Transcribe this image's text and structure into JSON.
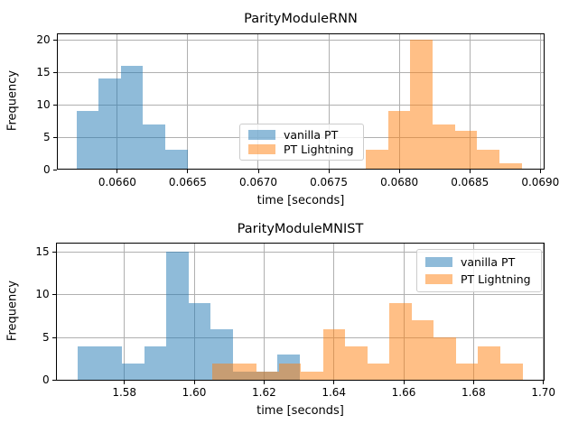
{
  "colors": {
    "vanilla_pt": "#1f77b4",
    "pt_lightning": "#ff7f0e",
    "bar_alpha": 0.5,
    "grid": "#b0b0b0",
    "spine": "#000000",
    "text": "#000000",
    "legend_border": "#cccccc",
    "background": "#ffffff"
  },
  "legend": {
    "items": [
      {
        "label": "vanilla PT",
        "color_key": "vanilla_pt"
      },
      {
        "label": "PT Lightning",
        "color_key": "pt_lightning"
      }
    ]
  },
  "chart_data": [
    {
      "type": "histogram",
      "title": "ParityModuleRNN",
      "xlabel": "time [seconds]",
      "ylabel": "Frequency",
      "xlim": [
        0.06557,
        0.069028
      ],
      "ylim": [
        0,
        21.06
      ],
      "grid": true,
      "legend_position": "center",
      "xticks": [
        {
          "value": 0.066,
          "label": "0.0660"
        },
        {
          "value": 0.0665,
          "label": "0.0665"
        },
        {
          "value": 0.067,
          "label": "0.0670"
        },
        {
          "value": 0.0675,
          "label": "0.0675"
        },
        {
          "value": 0.068,
          "label": "0.0680"
        },
        {
          "value": 0.0685,
          "label": "0.0685"
        },
        {
          "value": 0.069,
          "label": "0.0690"
        }
      ],
      "yticks": [
        {
          "value": 0,
          "label": "0"
        },
        {
          "value": 5,
          "label": "5"
        },
        {
          "value": 10,
          "label": "10"
        },
        {
          "value": 15,
          "label": "15"
        },
        {
          "value": 20,
          "label": "20"
        }
      ],
      "series": [
        {
          "name": "vanilla PT",
          "color_key": "vanilla_pt",
          "bin_start": 0.0657125,
          "bin_width": 0.000157,
          "counts": [
            9,
            14,
            16,
            7,
            3
          ]
        },
        {
          "name": "PT Lightning",
          "color_key": "pt_lightning",
          "bin_start": 0.067762,
          "bin_width": 0.000158,
          "counts": [
            3,
            9,
            20,
            7,
            6,
            3,
            1
          ]
        }
      ]
    },
    {
      "type": "histogram",
      "title": "ParityModuleMNIST",
      "xlabel": "time [seconds]",
      "ylabel": "Frequency",
      "xlim": [
        1.56034,
        1.70034
      ],
      "ylim": [
        0,
        16.05
      ],
      "grid": true,
      "legend_position": "upper right",
      "xticks": [
        {
          "value": 1.58,
          "label": "1.58"
        },
        {
          "value": 1.6,
          "label": "1.60"
        },
        {
          "value": 1.62,
          "label": "1.62"
        },
        {
          "value": 1.64,
          "label": "1.64"
        },
        {
          "value": 1.66,
          "label": "1.66"
        },
        {
          "value": 1.68,
          "label": "1.68"
        },
        {
          "value": 1.7,
          "label": "1.70"
        }
      ],
      "yticks": [
        {
          "value": 0,
          "label": "0"
        },
        {
          "value": 5,
          "label": "5"
        },
        {
          "value": 10,
          "label": "10"
        },
        {
          "value": 15,
          "label": "15"
        }
      ],
      "series": [
        {
          "name": "vanilla PT",
          "color_key": "vanilla_pt",
          "bin_start": 1.56664,
          "bin_width": 0.006352,
          "counts": [
            4,
            4,
            2,
            4,
            15,
            9,
            6,
            1,
            1,
            3
          ]
        },
        {
          "name": "PT Lightning",
          "color_key": "pt_lightning",
          "bin_start": 1.60518,
          "bin_width": 0.006345,
          "counts": [
            2,
            2,
            1,
            2,
            1,
            6,
            4,
            2,
            9,
            7,
            5,
            2,
            4,
            2
          ]
        }
      ]
    }
  ]
}
